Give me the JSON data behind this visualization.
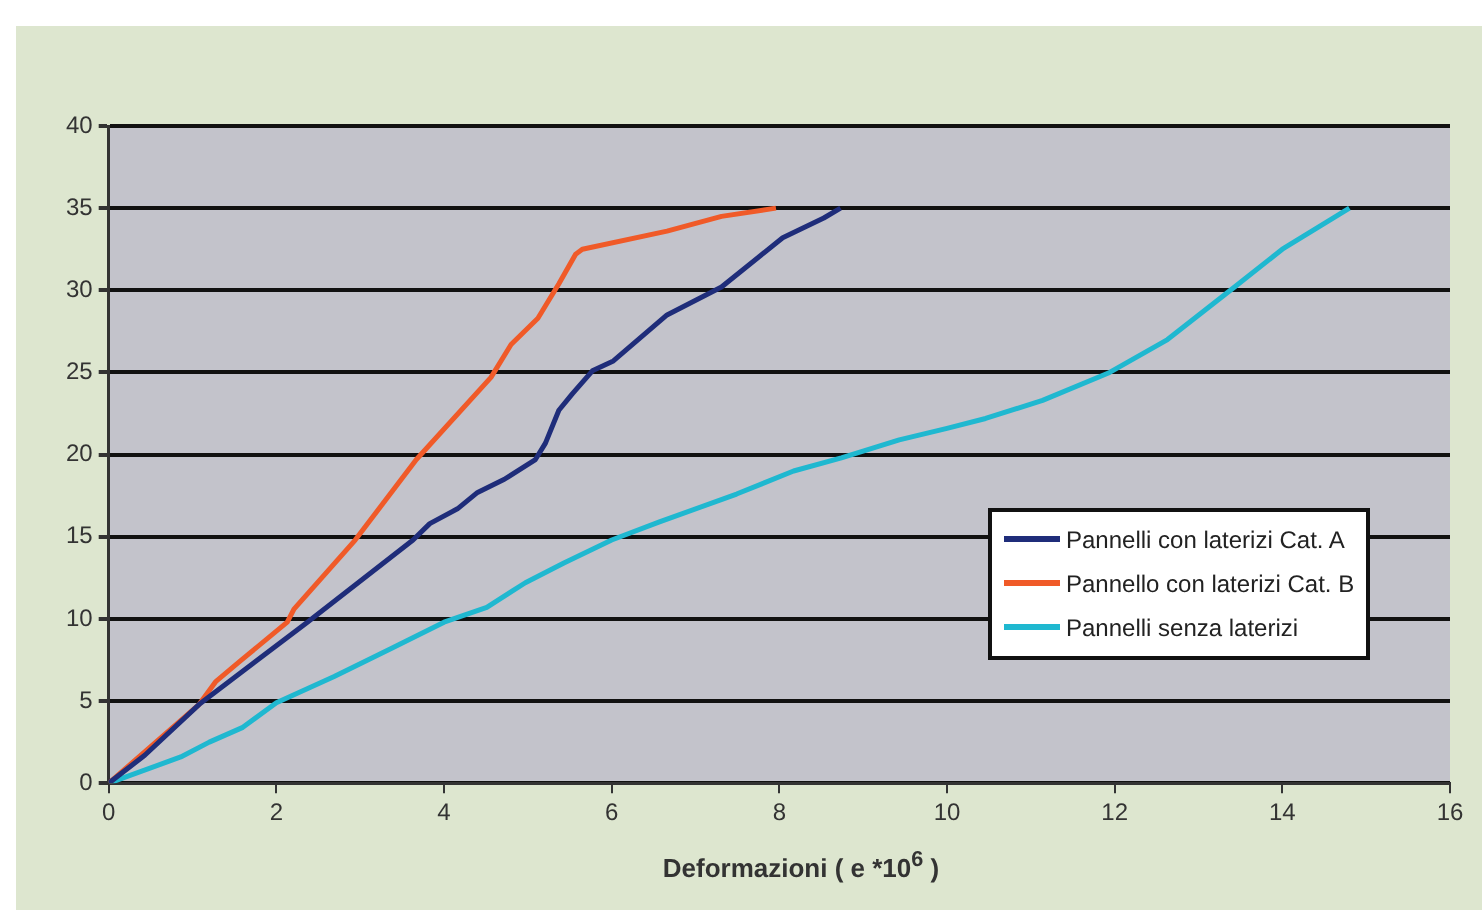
{
  "chart_data": {
    "type": "line",
    "xlabel": "Deformazioni ( e *10$^{6}$ )",
    "xlim": [
      0,
      16
    ],
    "xticks": [
      0,
      2,
      4,
      6,
      8,
      10,
      12,
      14,
      16
    ],
    "ylim": [
      0,
      40
    ],
    "yticks": [
      0,
      5,
      10,
      15,
      20,
      25,
      30,
      35,
      40
    ],
    "grid": "y",
    "legend": "right",
    "marker": "none",
    "line_style": "solid",
    "series": [
      {
        "name": "Pannelli con laterizi Cat. A",
        "color": "#1f2d7a",
        "x": [
          0,
          0.43,
          1.08,
          2.37,
          3.63,
          3.83,
          4.16,
          4.4,
          4.72,
          5.09,
          5.21,
          5.37,
          5.53,
          5.77,
          6.02,
          6.66,
          7.31,
          8.04,
          8.53,
          8.73
        ],
        "values": [
          0,
          1.7,
          4.8,
          9.8,
          14.8,
          15.8,
          16.7,
          17.7,
          18.5,
          19.7,
          20.7,
          22.7,
          23.7,
          25.1,
          25.7,
          28.5,
          30.2,
          33.2,
          34.4,
          35
        ]
      },
      {
        "name": "Pannello con laterizi Cat. B",
        "color": "#f05a28",
        "x": [
          0,
          1.08,
          1.28,
          1.56,
          2.13,
          2.21,
          2.94,
          3.67,
          4.56,
          4.8,
          5.12,
          5.37,
          5.57,
          5.65,
          6.66,
          7.31,
          7.96
        ],
        "values": [
          0,
          4.8,
          6.2,
          7.4,
          9.8,
          10.6,
          14.8,
          19.7,
          24.7,
          26.7,
          28.3,
          30.4,
          32.2,
          32.5,
          33.6,
          34.5,
          35
        ]
      },
      {
        "name": "Pannelli senza laterizi",
        "color": "#1fb8d0",
        "x": [
          0,
          0.86,
          1.2,
          1.6,
          2,
          2.69,
          3.37,
          4,
          4.51,
          4.97,
          5.43,
          6,
          6.57,
          7.49,
          8.17,
          8.74,
          9.43,
          10,
          10.46,
          11.14,
          11.94,
          12.63,
          13.43,
          14,
          14.8
        ],
        "values": [
          0,
          1.6,
          2.5,
          3.4,
          4.9,
          6.5,
          8.2,
          9.8,
          10.7,
          12.2,
          13.4,
          14.8,
          15.9,
          17.6,
          19,
          19.8,
          20.9,
          21.6,
          22.2,
          23.3,
          25,
          27,
          30.2,
          32.5,
          35
        ]
      }
    ]
  }
}
